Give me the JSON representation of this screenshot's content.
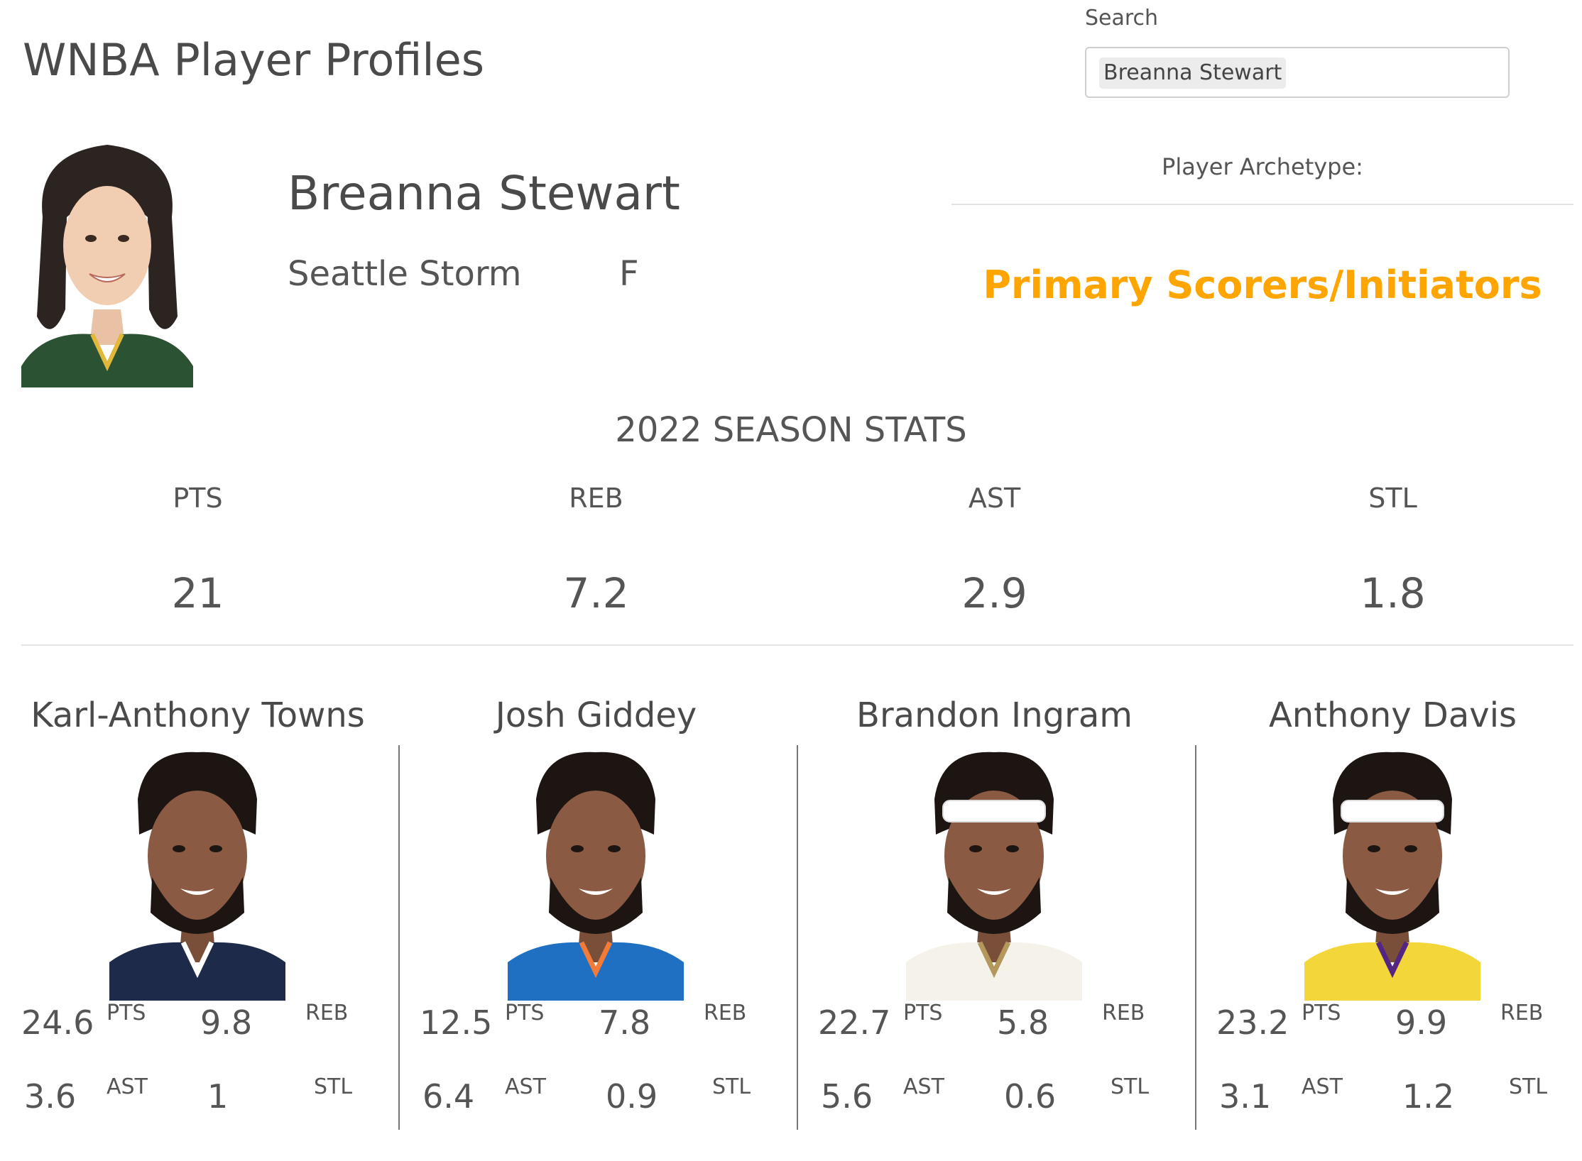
{
  "header": {
    "title": "WNBA Player Profiles"
  },
  "search": {
    "label": "Search",
    "selected": "Breanna Stewart"
  },
  "player": {
    "name": "Breanna Stewart",
    "team": "Seattle Storm",
    "position": "F",
    "archetype_label": "Player Archetype:",
    "archetype": "Primary Scorers/Initiators",
    "archetype_color": "#FFA500",
    "jersey_color": "#2c5234"
  },
  "season": {
    "title": "2022 SEASON STATS",
    "stats": [
      {
        "label": "PTS",
        "value": "21"
      },
      {
        "label": "REB",
        "value": "7.2"
      },
      {
        "label": "AST",
        "value": "2.9"
      },
      {
        "label": "STL",
        "value": "1.8"
      }
    ]
  },
  "similar": [
    {
      "name": "Karl-Anthony Towns",
      "pts": "24.6",
      "reb": "9.8",
      "ast": "3.6",
      "stl": "1",
      "jersey": "#1e2a4a",
      "trim": "#ffffff",
      "headband": false
    },
    {
      "name": "Josh Giddey",
      "pts": "12.5",
      "reb": "7.8",
      "ast": "6.4",
      "stl": "0.9",
      "jersey": "#1f6fc2",
      "trim": "#f47a38",
      "headband": false
    },
    {
      "name": "Brandon Ingram",
      "pts": "22.7",
      "reb": "5.8",
      "ast": "5.6",
      "stl": "0.6",
      "jersey": "#f5f2ea",
      "trim": "#b4975a",
      "headband": true
    },
    {
      "name": "Anthony Davis",
      "pts": "23.2",
      "reb": "9.9",
      "ast": "3.1",
      "stl": "1.2",
      "jersey": "#f3d63a",
      "trim": "#552583",
      "headband": true
    }
  ],
  "stat_labels": {
    "pts": "PTS",
    "reb": "REB",
    "ast": "AST",
    "stl": "STL"
  }
}
